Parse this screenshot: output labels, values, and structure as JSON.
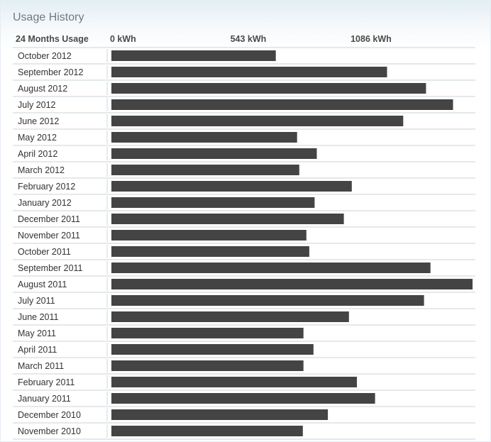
{
  "panel": {
    "title": "Usage History"
  },
  "colors": {
    "bar": "#444444",
    "row_line": "#c9d3da",
    "divider": "#cfd7dd"
  },
  "chart_data": {
    "type": "bar",
    "orientation": "horizontal",
    "category_header": "24 Months Usage",
    "tick_values": [
      0,
      543,
      1086
    ],
    "tick_labels": [
      "0 kWh",
      "543 kWh",
      "1086 kWh"
    ],
    "xlim": [
      0,
      1630
    ],
    "grid": false,
    "categories": [
      "October 2012",
      "September 2012",
      "August 2012",
      "July 2012",
      "June 2012",
      "May 2012",
      "April 2012",
      "March 2012",
      "February 2012",
      "January 2012",
      "December 2011",
      "November 2011",
      "October 2011",
      "September 2011",
      "August 2011",
      "July 2011",
      "June 2011",
      "May 2011",
      "April 2011",
      "March 2011",
      "February 2011",
      "January 2011",
      "December 2010",
      "November 2010"
    ],
    "values": [
      742,
      1244,
      1420,
      1542,
      1317,
      838,
      927,
      848,
      1085,
      917,
      1049,
      880,
      893,
      1440,
      1630,
      1411,
      1072,
      867,
      912,
      867,
      1108,
      1190,
      977,
      864
    ]
  }
}
